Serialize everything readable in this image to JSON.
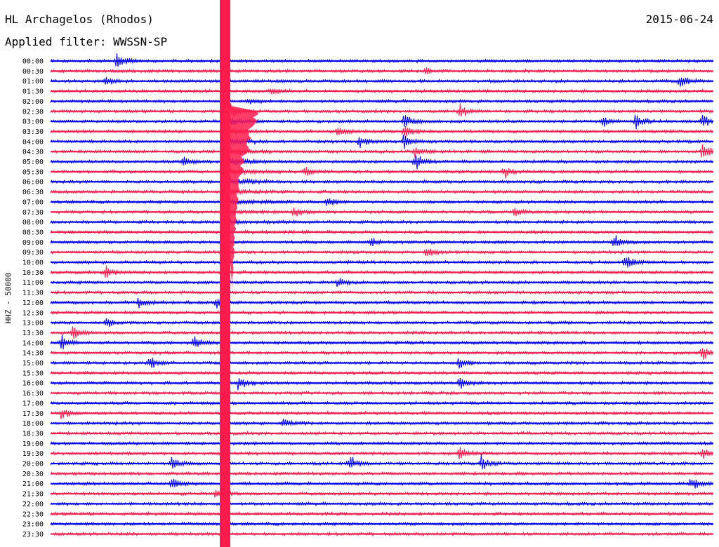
{
  "header": {
    "station": "HL Archagelos (Rhodos)",
    "date": "2015-06-24",
    "filter": "Applied filter: WWSSN-SP"
  },
  "colors": {
    "trace_a": "#0000ff",
    "trace_b": "#ff1b4b",
    "background": "#ffffff",
    "text": "#000000"
  },
  "chart_data": {
    "type": "line",
    "title": "HL Archagelos (Rhodos)",
    "subtitle": "Applied filter: WWSSN-SP",
    "ylabel": "HHZ - 50000",
    "categories": [
      "00:00",
      "00:30",
      "01:00",
      "01:30",
      "02:00",
      "02:30",
      "03:00",
      "03:30",
      "04:00",
      "04:30",
      "05:00",
      "05:30",
      "06:00",
      "06:30",
      "07:00",
      "07:30",
      "08:00",
      "08:30",
      "09:00",
      "09:30",
      "10:00",
      "10:30",
      "11:00",
      "11:30",
      "12:00",
      "12:30",
      "13:00",
      "13:30",
      "14:00",
      "14:30",
      "15:00",
      "15:30",
      "16:00",
      "16:30",
      "17:00",
      "17:30",
      "18:00",
      "18:30",
      "19:00",
      "19:30",
      "20:00",
      "20:30",
      "21:00",
      "21:30",
      "22:00",
      "22:30",
      "23:00",
      "23:30"
    ],
    "trace_colors": [
      "blue",
      "red"
    ],
    "events": [
      {
        "row": "00:00",
        "minute": 3,
        "amplitude": 1.0
      },
      {
        "row": "00:30",
        "minute": 17,
        "amplitude": 0.5
      },
      {
        "row": "01:00",
        "minute": 2.5,
        "amplitude": 0.6
      },
      {
        "row": "01:00",
        "minute": 28.5,
        "amplitude": 0.9
      },
      {
        "row": "01:30",
        "minute": 10,
        "amplitude": 0.5
      },
      {
        "row": "02:00",
        "minute": 9,
        "amplitude": 0.3
      },
      {
        "row": "02:30",
        "minute": 8,
        "amplitude": 0.8
      },
      {
        "row": "02:30",
        "minute": 18.5,
        "amplitude": 1.0
      },
      {
        "row": "03:00",
        "minute": 16,
        "amplitude": 1.0
      },
      {
        "row": "03:00",
        "minute": 25,
        "amplitude": 0.7
      },
      {
        "row": "03:00",
        "minute": 26.5,
        "amplitude": 1.0
      },
      {
        "row": "03:00",
        "minute": 29.5,
        "amplitude": 0.8
      },
      {
        "row": "03:30",
        "minute": 13,
        "amplitude": 0.7
      },
      {
        "row": "03:30",
        "minute": 16,
        "amplitude": 1.0
      },
      {
        "row": "04:00",
        "minute": 14,
        "amplitude": 0.7
      },
      {
        "row": "04:00",
        "minute": 16,
        "amplitude": 1.0
      },
      {
        "row": "04:30",
        "minute": 16.5,
        "amplitude": 1.0
      },
      {
        "row": "04:30",
        "minute": 29.5,
        "amplitude": 1.0
      },
      {
        "row": "05:00",
        "minute": 6,
        "amplitude": 0.8
      },
      {
        "row": "05:00",
        "minute": 16.5,
        "amplitude": 1.0
      },
      {
        "row": "05:30",
        "minute": 11.5,
        "amplitude": 0.7
      },
      {
        "row": "05:30",
        "minute": 20.5,
        "amplitude": 0.8
      },
      {
        "row": "07:00",
        "minute": 12.5,
        "amplitude": 0.8
      },
      {
        "row": "07:30",
        "minute": 11,
        "amplitude": 0.7
      },
      {
        "row": "07:30",
        "minute": 21,
        "amplitude": 0.7
      },
      {
        "row": "09:00",
        "minute": 14.5,
        "amplitude": 0.6
      },
      {
        "row": "09:00",
        "minute": 25.5,
        "amplitude": 1.0
      },
      {
        "row": "09:30",
        "minute": 17,
        "amplitude": 0.7
      },
      {
        "row": "10:00",
        "minute": 26,
        "amplitude": 1.0
      },
      {
        "row": "10:30",
        "minute": 2.5,
        "amplitude": 1.0
      },
      {
        "row": "11:00",
        "minute": 13,
        "amplitude": 0.7
      },
      {
        "row": "12:00",
        "minute": 4,
        "amplitude": 0.6
      },
      {
        "row": "12:00",
        "minute": 7.5,
        "amplitude": 0.8
      },
      {
        "row": "13:00",
        "minute": 2.5,
        "amplitude": 0.6
      },
      {
        "row": "13:30",
        "minute": 1,
        "amplitude": 0.9
      },
      {
        "row": "14:00",
        "minute": 0.5,
        "amplitude": 1.0
      },
      {
        "row": "14:00",
        "minute": 6.5,
        "amplitude": 0.8
      },
      {
        "row": "14:30",
        "minute": 29.5,
        "amplitude": 1.0
      },
      {
        "row": "15:00",
        "minute": 4.5,
        "amplitude": 0.7
      },
      {
        "row": "15:00",
        "minute": 18.5,
        "amplitude": 0.8
      },
      {
        "row": "16:00",
        "minute": 8.5,
        "amplitude": 0.9
      },
      {
        "row": "16:00",
        "minute": 18.5,
        "amplitude": 0.7
      },
      {
        "row": "17:30",
        "minute": 0.5,
        "amplitude": 0.8
      },
      {
        "row": "18:00",
        "minute": 10.5,
        "amplitude": 0.6
      },
      {
        "row": "19:30",
        "minute": 18.5,
        "amplitude": 1.0
      },
      {
        "row": "19:30",
        "minute": 29.5,
        "amplitude": 0.8
      },
      {
        "row": "20:00",
        "minute": 5.5,
        "amplitude": 0.9
      },
      {
        "row": "20:00",
        "minute": 13.5,
        "amplitude": 1.0
      },
      {
        "row": "20:00",
        "minute": 19.5,
        "amplitude": 1.0
      },
      {
        "row": "21:00",
        "minute": 5.5,
        "amplitude": 0.9
      },
      {
        "row": "21:00",
        "minute": 29,
        "amplitude": 0.8
      },
      {
        "row": "21:30",
        "minute": 7.5,
        "amplitude": 0.8
      }
    ],
    "main_event": {
      "row": "02:30",
      "minute": 8.0,
      "coda_until_row": "08:30",
      "coda_end_minute": 11
    }
  }
}
